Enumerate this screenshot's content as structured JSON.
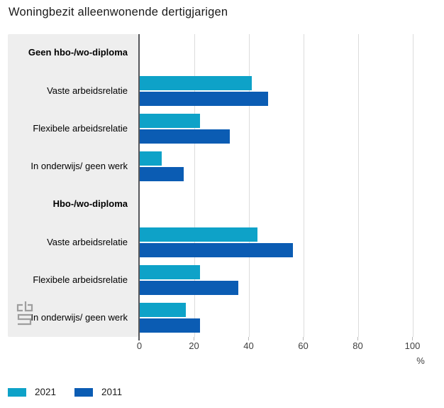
{
  "title": "Woningbezit alleenwonende dertigjarigen",
  "chart_data": {
    "type": "bar",
    "orientation": "horizontal",
    "title": "Woningbezit alleenwonende dertigjarigen",
    "categories": [
      "Geen hbo-/wo-diploma",
      "Vaste arbeidsrelatie",
      "Flexibele arbeidsrelatie",
      "In onderwijs/ geen werk",
      "Hbo-/wo-diploma",
      "Vaste arbeidsrelatie",
      "Flexibele arbeidsrelatie",
      "In onderwijs/ geen werk"
    ],
    "header_rows": [
      0,
      4
    ],
    "series": [
      {
        "name": "2021",
        "color": "#0ea2c8",
        "values": [
          null,
          41,
          22,
          8,
          null,
          43,
          22,
          17
        ]
      },
      {
        "name": "2011",
        "color": "#0b5cb3",
        "values": [
          null,
          47,
          33,
          16,
          null,
          56,
          36,
          22
        ]
      }
    ],
    "xlabel": "%",
    "xlim": [
      0,
      110
    ],
    "x_ticks": [
      0,
      20,
      40,
      60,
      80,
      100
    ],
    "grid": "vertical",
    "legend_position": "bottom-left"
  },
  "legend": {
    "items": [
      {
        "label": "2021",
        "color": "#0ea2c8"
      },
      {
        "label": "2011",
        "color": "#0b5cb3"
      }
    ]
  },
  "colors": {
    "series_2021": "#0ea2c8",
    "series_2011": "#0b5cb3",
    "category_panel_bg": "#eeeeee",
    "gridline": "#dcdcdc",
    "axis_line": "#55565a",
    "text": "#1a1a1a"
  },
  "logo": "cbs-logo"
}
